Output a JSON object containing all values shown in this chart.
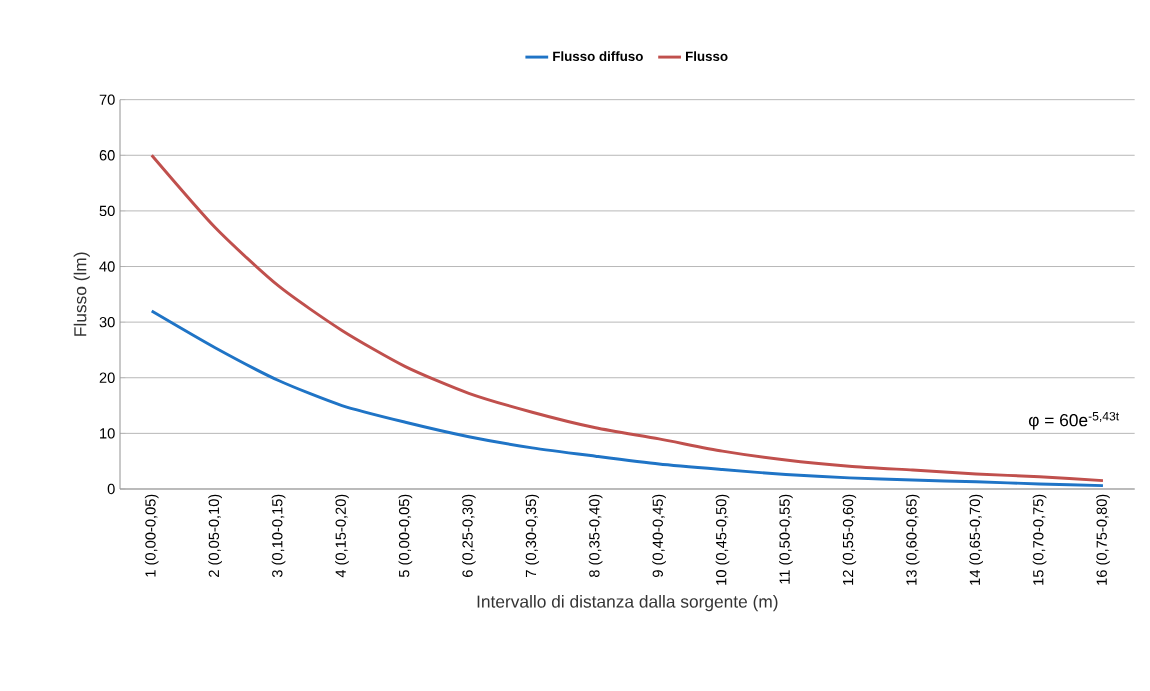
{
  "chart_data": {
    "type": "line",
    "categories": [
      "1 (0,00-0,05)",
      "2 (0,05-0,10)",
      "3 (0,10-0,15)",
      "4 (0,15-0,20)",
      "5 (0,00-0,05)",
      "6 (0,25-0,30)",
      "7 (0,30-0,35)",
      "8 (0,35-0,40)",
      "9 (0,40-0,45)",
      "10 (0,45-0,50)",
      "11 (0,50-0,55)",
      "12 (0,55-0,60)",
      "13 (0,60-0,65)",
      "14 (0,65-0,70)",
      "15 (0,70-0,75)",
      "16 (0,75-0,80)"
    ],
    "series": [
      {
        "name": "Flusso diffuso",
        "color": "#1f74c6",
        "values": [
          32,
          25.4,
          19.5,
          15,
          12,
          9.4,
          7.4,
          5.9,
          4.5,
          3.5,
          2.6,
          2,
          1.6,
          1.3,
          0.9,
          0.6
        ]
      },
      {
        "name": "Flusso",
        "color": "#c0504d",
        "values": [
          60,
          47,
          36.5,
          28.5,
          22,
          17.2,
          13.8,
          11,
          9,
          6.8,
          5.2,
          4.1,
          3.4,
          2.7,
          2.2,
          1.5
        ]
      }
    ],
    "xlabel": "Intervallo di distanza dalla sorgente (m)",
    "ylabel": "Flusso (lm)",
    "ylim": [
      0,
      70
    ],
    "yticks": [
      0,
      10,
      20,
      30,
      40,
      50,
      60,
      70
    ],
    "annotations": [
      "φ = 60e$^{-5,43t}$"
    ],
    "grid": "y",
    "legend": "top",
    "marker": "none",
    "line_style": "solid"
  }
}
